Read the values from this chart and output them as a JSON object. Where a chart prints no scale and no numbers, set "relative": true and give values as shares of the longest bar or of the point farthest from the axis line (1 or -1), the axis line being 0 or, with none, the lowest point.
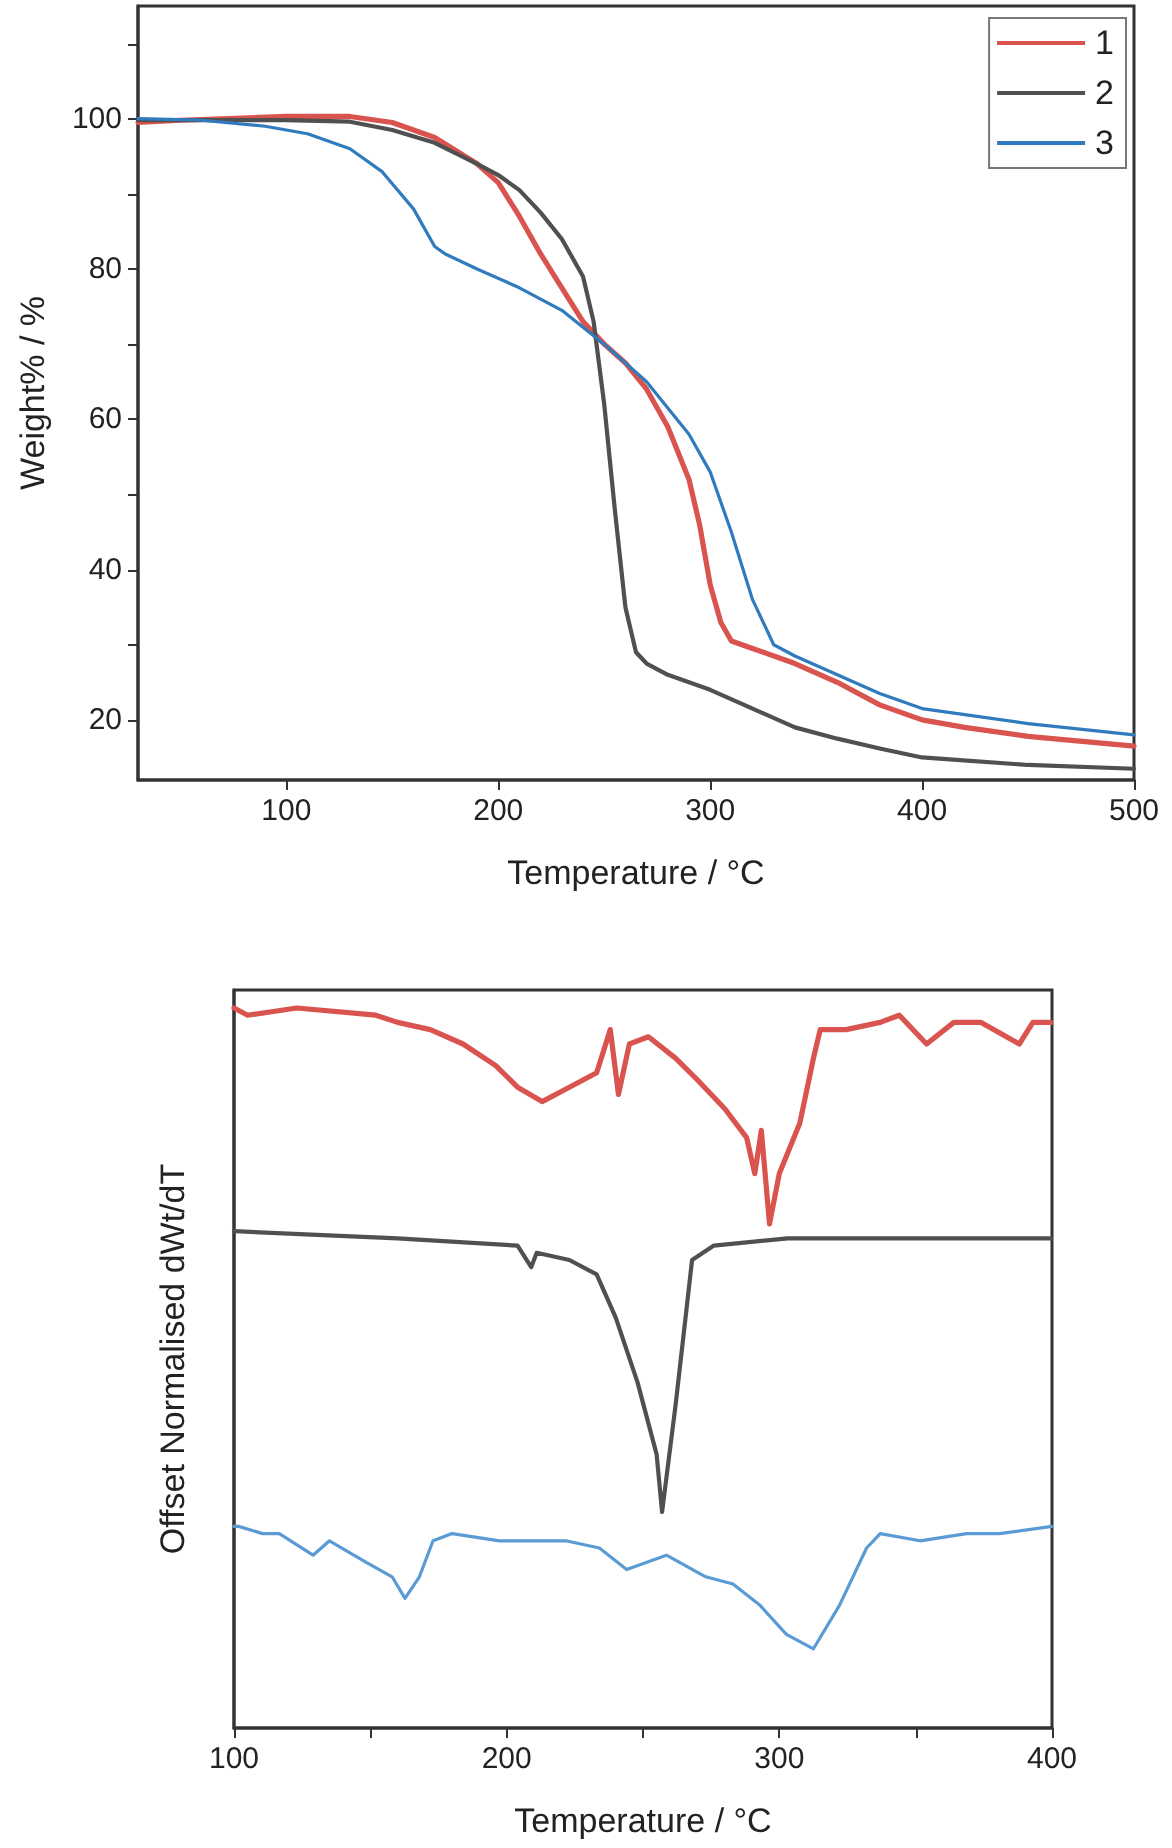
{
  "chart_data": [
    {
      "type": "line",
      "xlabel": "Temperature / °C",
      "ylabel": "Weight% / %",
      "xlim": [
        30,
        500
      ],
      "ylim": [
        12,
        115
      ],
      "xticks": [
        100,
        200,
        300,
        400,
        500
      ],
      "yticks": [
        20,
        {
          "value": 30,
          "label": null
        },
        40,
        {
          "value": 50,
          "label": null
        },
        60,
        {
          "value": 70,
          "label": null
        },
        80,
        {
          "value": 90,
          "label": null
        },
        100,
        {
          "value": 110,
          "label": null
        }
      ],
      "legend": "top right",
      "grid": false,
      "marker": "none",
      "line_style": "solid",
      "series": [
        {
          "name": "1",
          "color": "#d9534f",
          "x": [
            30,
            50,
            100,
            130,
            150,
            170,
            190,
            200,
            210,
            220,
            230,
            240,
            250,
            260,
            270,
            280,
            290,
            295,
            300,
            305,
            310,
            320,
            340,
            360,
            380,
            400,
            420,
            450,
            500
          ],
          "values": [
            99.5,
            99.8,
            100.3,
            100.3,
            99.5,
            97.5,
            94,
            91.5,
            87,
            82,
            77.5,
            73,
            70,
            67.5,
            64,
            59,
            52,
            46,
            38,
            33,
            30.5,
            29.5,
            27.5,
            25,
            22,
            20,
            19,
            17.8,
            16.5
          ]
        },
        {
          "name": "2",
          "color": "#505050",
          "x": [
            30,
            100,
            130,
            150,
            170,
            190,
            200,
            210,
            220,
            230,
            240,
            245,
            250,
            255,
            260,
            265,
            270,
            280,
            300,
            320,
            340,
            360,
            380,
            400,
            450,
            500
          ],
          "values": [
            99.8,
            99.8,
            99.6,
            98.5,
            96.8,
            94,
            92.5,
            90.5,
            87.5,
            84,
            79,
            73,
            62,
            48,
            35,
            29,
            27.5,
            26,
            24,
            21.5,
            19,
            17.5,
            16.2,
            15,
            14,
            13.5
          ]
        },
        {
          "name": "3",
          "color": "#2f7bbd",
          "x": [
            30,
            60,
            90,
            110,
            130,
            145,
            160,
            170,
            175,
            190,
            210,
            230,
            250,
            270,
            290,
            300,
            310,
            320,
            330,
            340,
            360,
            380,
            400,
            450,
            500
          ],
          "values": [
            100,
            99.8,
            99,
            98,
            96,
            93,
            88,
            83,
            82,
            80,
            77.5,
            74.5,
            70,
            65,
            58,
            53,
            45,
            36,
            30,
            28.5,
            26,
            23.5,
            21.5,
            19.5,
            18
          ]
        }
      ]
    },
    {
      "type": "line",
      "relative": true,
      "xlabel": "Temperature / °C",
      "ylabel": "Offset Normalised dWt/dT",
      "xlim": [
        100,
        400
      ],
      "xticks": [
        100,
        {
          "value": 150,
          "label": null
        },
        200,
        {
          "value": 250,
          "label": null
        },
        300,
        {
          "value": 350,
          "label": null
        },
        400
      ],
      "grid": false,
      "marker": "none",
      "line_style": "solid",
      "series": [
        {
          "color": "#d9534f",
          "x": [
            100,
            105,
            123,
            152,
            160,
            172,
            184,
            196,
            204,
            213,
            223,
            233,
            238,
            241,
            245,
            252,
            262,
            270,
            280,
            288,
            291,
            293.4,
            296.4,
            300,
            307.5,
            312.5,
            315,
            324.5,
            337,
            344,
            354,
            364,
            374,
            388,
            393,
            399.5
          ],
          "values": [
            1.0,
            0.99,
            1.0,
            0.99,
            0.98,
            0.97,
            0.95,
            0.92,
            0.89,
            0.87,
            0.89,
            0.91,
            0.97,
            0.88,
            0.95,
            0.96,
            0.93,
            0.9,
            0.86,
            0.82,
            0.77,
            0.83,
            0.7,
            0.77,
            0.84,
            0.93,
            0.97,
            0.97,
            0.98,
            0.99,
            0.95,
            0.98,
            0.98,
            0.95,
            0.98,
            0.98
          ]
        },
        {
          "color": "#505050",
          "x": [
            100,
            160,
            204,
            209,
            211,
            223,
            233,
            240,
            248,
            255,
            257,
            262,
            268,
            276,
            303,
            354,
            399.5
          ],
          "values": [
            0.69,
            0.68,
            0.67,
            0.64,
            0.66,
            0.65,
            0.63,
            0.57,
            0.48,
            0.38,
            0.3,
            0.45,
            0.65,
            0.67,
            0.68,
            0.68,
            0.68
          ]
        },
        {
          "color": "#5b9bd5",
          "x": [
            100,
            101.7,
            110.5,
            116.6,
            129,
            135,
            148.5,
            158,
            162.7,
            168,
            173,
            180,
            197.4,
            221.7,
            234,
            244,
            258.6,
            273,
            283,
            293,
            302.6,
            312.5,
            322,
            332,
            337,
            351.6,
            368.7,
            380.8,
            400
          ],
          "values": [
            0.28,
            0.28,
            0.27,
            0.27,
            0.24,
            0.26,
            0.23,
            0.21,
            0.18,
            0.21,
            0.26,
            0.27,
            0.26,
            0.26,
            0.25,
            0.22,
            0.24,
            0.21,
            0.2,
            0.17,
            0.13,
            0.11,
            0.17,
            0.25,
            0.27,
            0.26,
            0.27,
            0.27,
            0.28
          ]
        }
      ]
    }
  ]
}
